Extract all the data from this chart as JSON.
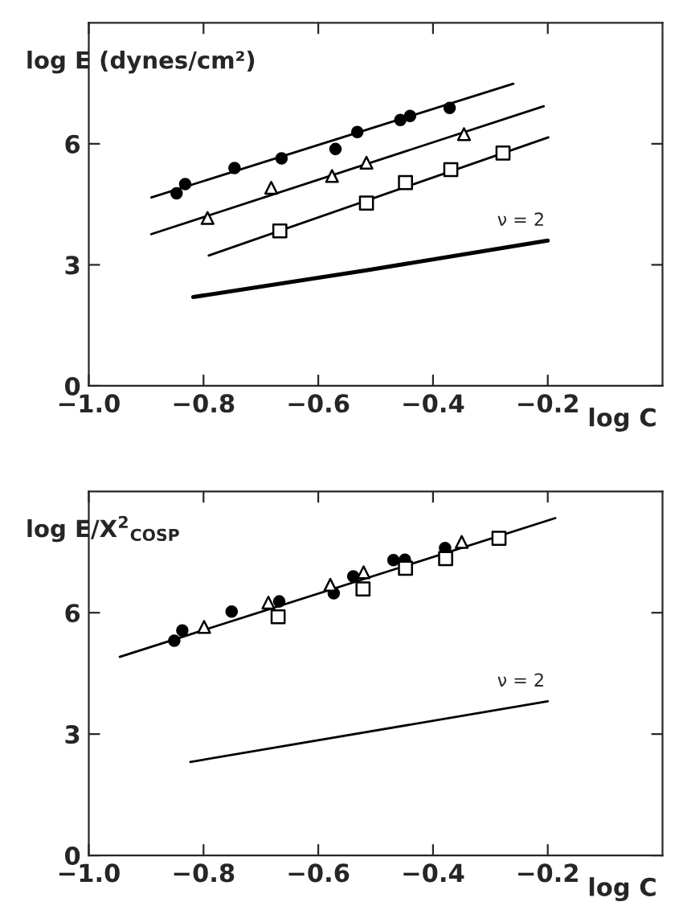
{
  "chart_data": [
    {
      "type": "scatter",
      "ylabel": "log E (dynes/cm²)",
      "xlabel": "log C",
      "xlim": [
        -1.0,
        0.0
      ],
      "ylim": [
        0,
        9
      ],
      "xticks": [
        {
          "value": -1.0,
          "label": "−1.0"
        },
        {
          "value": -0.8,
          "label": "−0.8"
        },
        {
          "value": -0.6,
          "label": "−0.6"
        },
        {
          "value": -0.4,
          "label": "−0.4"
        },
        {
          "value": -0.2,
          "label": "−0.2"
        }
      ],
      "yticks": [
        0,
        3,
        6
      ],
      "grid": false,
      "legend": false,
      "annotations": [
        "ν = 2"
      ],
      "series": [
        {
          "type": "scatter",
          "marker": "circle",
          "color": "#000000",
          "x": [
            -0.847,
            -0.832,
            -0.746,
            -0.664,
            -0.57,
            -0.532,
            -0.457,
            -0.44,
            -0.371
          ],
          "values": [
            4.77,
            5.0,
            5.4,
            5.64,
            5.87,
            6.29,
            6.59,
            6.69,
            6.89
          ]
        },
        {
          "type": "scatter",
          "marker": "triangle",
          "color": "#000000",
          "x": [
            -0.793,
            -0.682,
            -0.576,
            -0.516,
            -0.346
          ],
          "values": [
            4.16,
            4.91,
            5.2,
            5.53,
            6.24
          ]
        },
        {
          "type": "scatter",
          "marker": "square",
          "color": "#000000",
          "x": [
            -0.667,
            -0.516,
            -0.448,
            -0.369,
            -0.278
          ],
          "values": [
            3.84,
            4.53,
            5.04,
            5.36,
            5.77
          ]
        },
        {
          "type": "line",
          "color": "#000000",
          "x": [
            -0.891,
            -0.26
          ],
          "values": [
            4.67,
            7.49
          ]
        },
        {
          "type": "line",
          "color": "#000000",
          "x": [
            -0.891,
            -0.207
          ],
          "values": [
            3.76,
            6.93
          ]
        },
        {
          "type": "line",
          "color": "#000000",
          "x": [
            -0.791,
            -0.199
          ],
          "values": [
            3.23,
            6.16
          ]
        },
        {
          "type": "line",
          "color": "#000000",
          "x": [
            -0.818,
            -0.514,
            -0.2
          ],
          "values": [
            2.2,
            2.87,
            3.6
          ]
        }
      ]
    },
    {
      "type": "scatter",
      "ylabel": "log E/X$^{2}$$_{COSP}$",
      "xlabel": "log C",
      "xlim": [
        -1.0,
        0.0
      ],
      "ylim": [
        0,
        9
      ],
      "xticks": [
        {
          "value": -1.0,
          "label": "−1.0"
        },
        {
          "value": -0.8,
          "label": "−0.8"
        },
        {
          "value": -0.6,
          "label": "−0.6"
        },
        {
          "value": -0.4,
          "label": "−0.4"
        },
        {
          "value": -0.2,
          "label": "−0.2"
        }
      ],
      "yticks": [
        0,
        3,
        6
      ],
      "grid": false,
      "legend": false,
      "annotations": [
        "ν = 2"
      ],
      "series": [
        {
          "type": "scatter",
          "marker": "circle",
          "color": "#000000",
          "x": [
            -0.851,
            -0.837,
            -0.751,
            -0.668,
            -0.573,
            -0.539,
            -0.469,
            -0.449,
            -0.379
          ],
          "values": [
            5.31,
            5.56,
            6.03,
            6.28,
            6.48,
            6.9,
            7.3,
            7.31,
            7.6
          ]
        },
        {
          "type": "scatter",
          "marker": "triangle",
          "color": "#000000",
          "x": [
            -0.799,
            -0.687,
            -0.579,
            -0.521,
            -0.35
          ],
          "values": [
            5.65,
            6.25,
            6.69,
            7.0,
            7.75
          ]
        },
        {
          "type": "scatter",
          "marker": "square",
          "color": "#000000",
          "x": [
            -0.67,
            -0.522,
            -0.448,
            -0.378,
            -0.285
          ],
          "values": [
            5.9,
            6.59,
            7.1,
            7.34,
            7.84
          ]
        },
        {
          "type": "line",
          "color": "#000000",
          "x": [
            -0.946,
            -0.187
          ],
          "values": [
            4.91,
            8.34
          ]
        },
        {
          "type": "line",
          "color": "#000000",
          "x": [
            -0.823,
            -0.2
          ],
          "values": [
            2.31,
            3.81
          ]
        }
      ]
    }
  ]
}
